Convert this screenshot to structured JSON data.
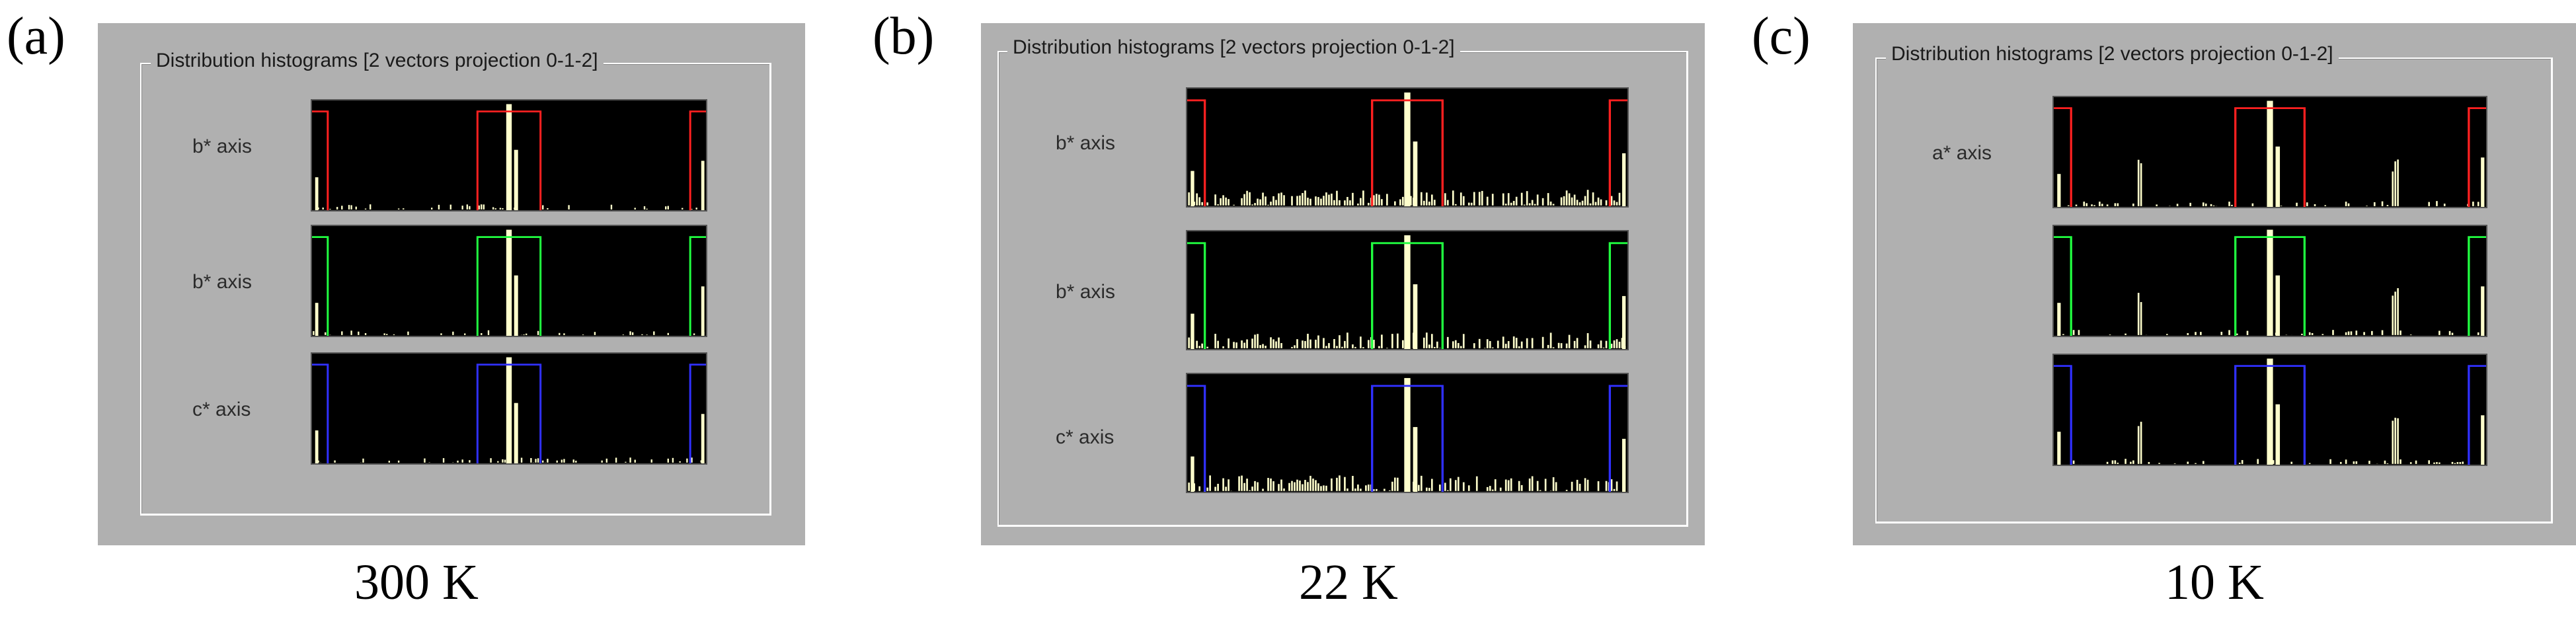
{
  "panels": [
    {
      "letter": "(a)",
      "caption": "300 K",
      "group_title": "Distribution histograms [2 vectors projection 0-1-2]",
      "rows": [
        {
          "label": "b*  axis",
          "color": "#ff2020"
        },
        {
          "label": "b*  axis",
          "color": "#20ff40"
        },
        {
          "label": "c*  axis",
          "color": "#3030ff"
        }
      ]
    },
    {
      "letter": "(b)",
      "caption": "22 K",
      "group_title": "Distribution histograms [2 vectors projection 0-1-2]",
      "rows": [
        {
          "label": "b*  axis",
          "color": "#ff2020"
        },
        {
          "label": "b*  axis",
          "color": "#20ff40"
        },
        {
          "label": "c*  axis",
          "color": "#3030ff"
        }
      ]
    },
    {
      "letter": "(c)",
      "caption": "10 K",
      "group_title": "Distribution histograms [2 vectors projection 0-1-2]",
      "rows": [
        {
          "label": "a*  axis",
          "color": "#ff2020"
        },
        {
          "label": "",
          "color": "#20ff40"
        },
        {
          "label": "",
          "color": "#3030ff"
        }
      ]
    }
  ],
  "histogram_fill": "#ffffcc"
}
